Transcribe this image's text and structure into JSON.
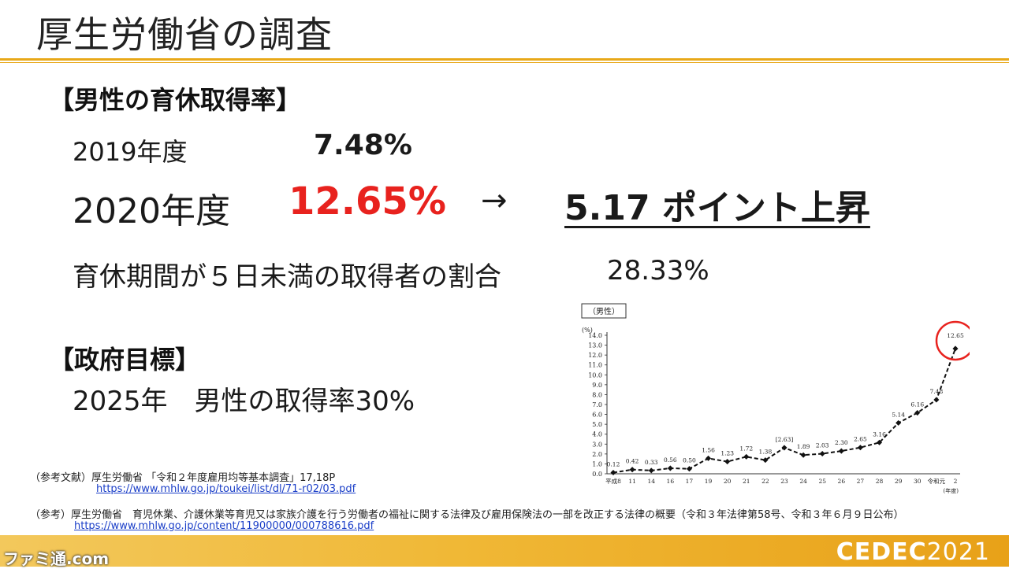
{
  "slide": {
    "title": "厚生労働省の調査"
  },
  "section1": {
    "heading": "【男性の育休取得率】",
    "year2019_label": "2019年度",
    "year2019_value": "7.48%",
    "year2020_label": "2020年度",
    "year2020_value": "12.65%",
    "arrow": "→",
    "rise_text": "5.17 ポイント上昇",
    "short_leave_label": "育休期間が５日未満の取得者の割合",
    "short_leave_value": "28.33%"
  },
  "section2": {
    "heading": "【政府目標】",
    "goal": "2025年　男性の取得率30%"
  },
  "references": {
    "ref1_text": "（参考文献）厚生労働省 「令和２年度雇用均等基本調査」17,18P",
    "ref1_url": "https://www.mhlw.go.jp/toukei/list/dl/71-r02/03.pdf",
    "ref2_text": "（参考）厚生労働省　育児休業、介護休業等育児又は家族介護を行う労働者の福祉に関する法律及び雇用保険法の一部を改正する法律の概要（令和３年法律第58号、令和３年６月９日公布）",
    "ref2_url": "https://www.mhlw.go.jp/content/11900000/000788616.pdf"
  },
  "footer": {
    "logo_bold": "CEDEC",
    "logo_year": "2021",
    "watermark": "ファミ通.com"
  },
  "colors": {
    "accent": "#e8a818",
    "highlight_red": "#e8221e",
    "link": "#1a3ec8"
  },
  "chart_data": {
    "type": "line",
    "title": "（男性）",
    "ylabel": "(%)",
    "xlabel": "(年度)",
    "ylim": [
      0,
      14
    ],
    "y_ticks": [
      "0.0",
      "1.0",
      "2.0",
      "3.0",
      "4.0",
      "5.0",
      "6.0",
      "7.0",
      "8.0",
      "9.0",
      "10.0",
      "11.0",
      "12.0",
      "13.0",
      "14.0"
    ],
    "categories": [
      "平成8",
      "11",
      "14",
      "16",
      "17",
      "19",
      "20",
      "21",
      "22",
      "23",
      "24",
      "25",
      "26",
      "27",
      "28",
      "29",
      "30",
      "令和元",
      "2"
    ],
    "values": [
      0.12,
      0.42,
      0.33,
      0.56,
      0.5,
      1.56,
      1.23,
      1.72,
      1.38,
      2.63,
      1.89,
      2.03,
      2.3,
      2.65,
      3.16,
      5.14,
      6.16,
      7.48,
      12.65
    ],
    "value_labels": [
      "0.12",
      "0.42",
      "0.33",
      "0.56",
      "0.50",
      "1.56",
      "1.23",
      "1.72",
      "1.38",
      "[2.63]",
      "1.89",
      "2.03",
      "2.30",
      "2.65",
      "3.16",
      "5.14",
      "6.16",
      "7.48",
      "12.65"
    ],
    "line_style": "dashed",
    "highlight_index": 18,
    "highlight_color": "#e8221e",
    "grid": false
  }
}
